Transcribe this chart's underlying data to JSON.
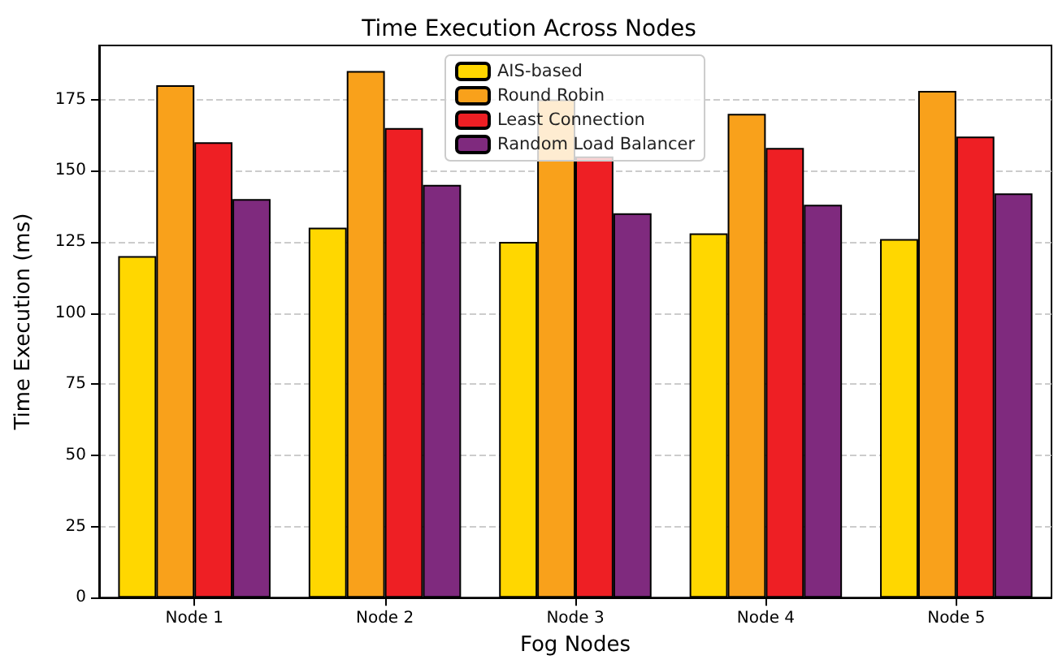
{
  "chart_data": {
    "type": "bar",
    "title": "Time Execution Across Nodes",
    "xlabel": "Fog Nodes",
    "ylabel": "Time Execution (ms)",
    "categories": [
      "Node 1",
      "Node 2",
      "Node 3",
      "Node 4",
      "Node 5"
    ],
    "series": [
      {
        "name": "AIS-based",
        "color": "#ffd700",
        "values": [
          120,
          130,
          125,
          128,
          126
        ]
      },
      {
        "name": "Round Robin",
        "color": "#f9a11b",
        "values": [
          180,
          185,
          175,
          170,
          178
        ]
      },
      {
        "name": "Least Connection",
        "color": "#ee1f24",
        "values": [
          160,
          165,
          155,
          158,
          162
        ]
      },
      {
        "name": "Random Load Balancer",
        "color": "#7f2a7e",
        "values": [
          140,
          145,
          135,
          138,
          142
        ]
      }
    ],
    "ylim": [
      0,
      194
    ],
    "yticks": [
      0,
      25,
      50,
      75,
      100,
      125,
      150,
      175
    ],
    "grid": "y",
    "legend": "top"
  }
}
